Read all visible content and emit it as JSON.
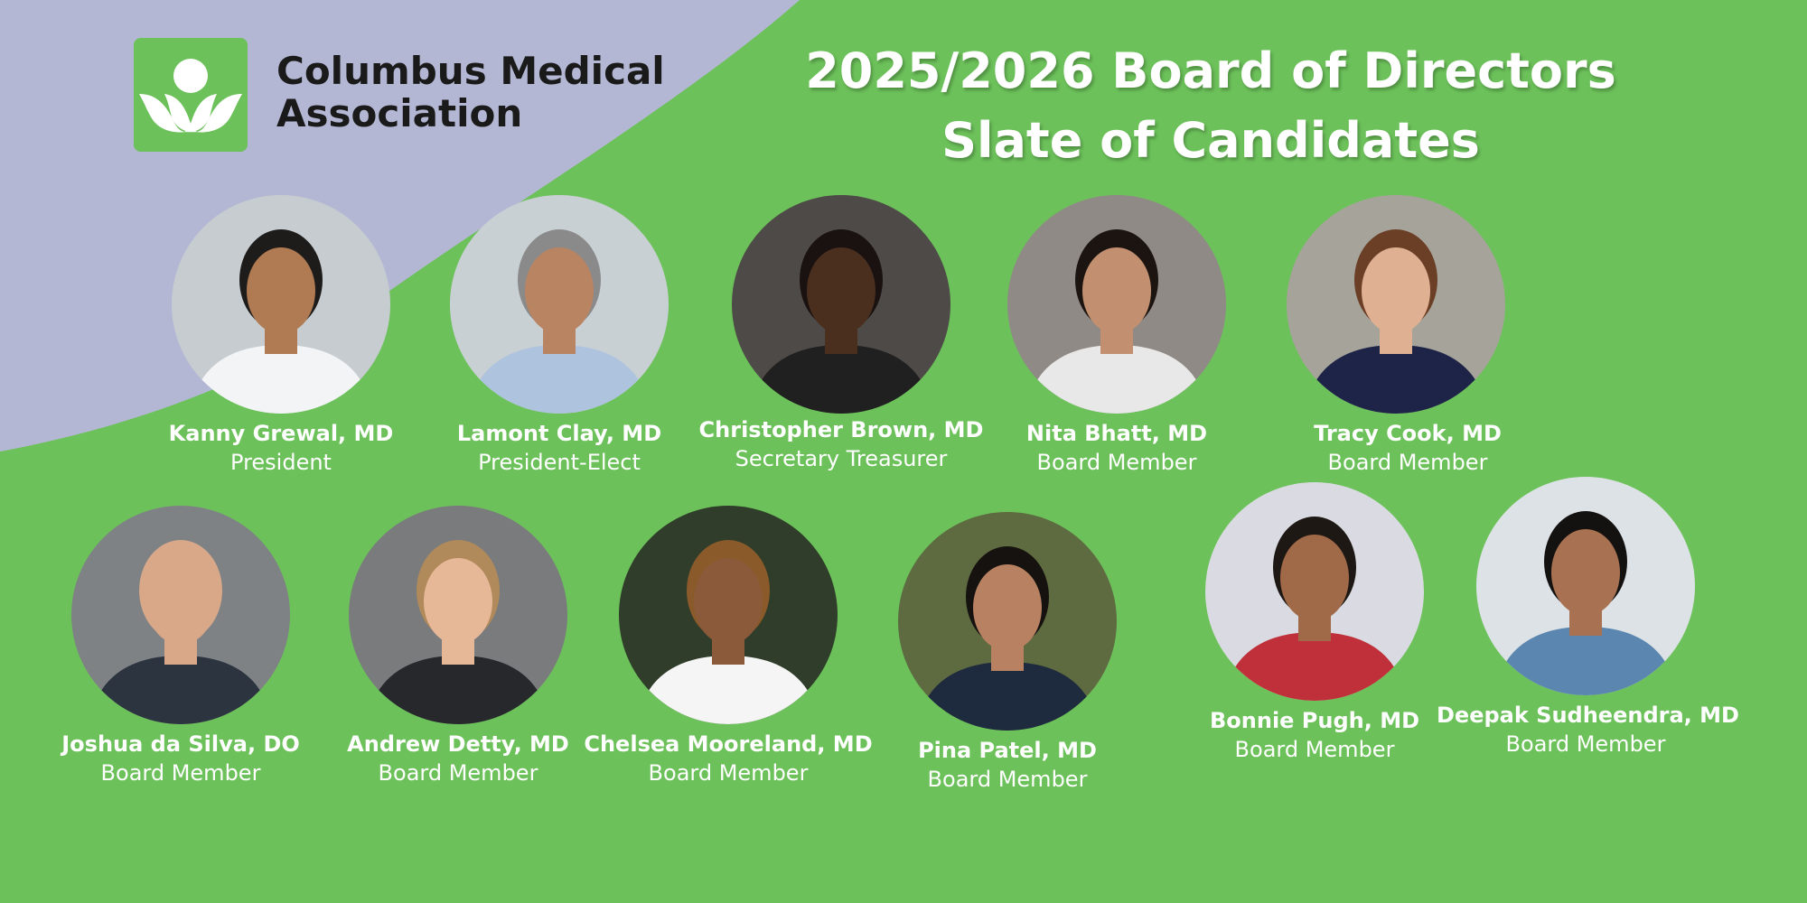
{
  "colors": {
    "background": "#6cc15a",
    "lavender": "#b4b7d4",
    "text_white": "#ffffff",
    "text_dark": "#1a1a1a"
  },
  "header": {
    "org_name": "Columbus Medical Association",
    "title_line1": "2025/2026 Board of Directors",
    "title_line2": "Slate of Candidates"
  },
  "candidates": [
    {
      "name": "Kanny Grewal, MD",
      "role": "President",
      "bg": "#c6ccd0",
      "skin": "#b07a52",
      "hair": "#1e1c1a",
      "outfit": "#f2f4f6"
    },
    {
      "name": "Lamont Clay, MD",
      "role": "President-Elect",
      "bg": "#c9d0d4",
      "skin": "#b98462",
      "hair": "#8a8a8a",
      "outfit": "#aec3dd"
    },
    {
      "name": "Christopher Brown, MD",
      "role": "Secretary Treasurer",
      "bg": "#4e4a47",
      "skin": "#4a2e1e",
      "hair": "#1a1210",
      "outfit": "#202020"
    },
    {
      "name": "Nita Bhatt, MD",
      "role": "Board Member",
      "bg": "#8f8a86",
      "skin": "#c29070",
      "hair": "#1c1410",
      "outfit": "#e8e8e8"
    },
    {
      "name": "Tracy Cook, MD",
      "role": "Board Member",
      "bg": "#a6a39a",
      "skin": "#e0b092",
      "hair": "#6b3e26",
      "outfit": "#1e2448"
    },
    {
      "name": "Joshua da Silva, DO",
      "role": "Board Member",
      "bg": "#7f8285",
      "skin": "#d8a888",
      "hair": "#d8a888",
      "outfit": "#2c3440"
    },
    {
      "name": "Andrew Detty, MD",
      "role": "Board Member",
      "bg": "#7a7b7d",
      "skin": "#e6b898",
      "hair": "#b08a5a",
      "outfit": "#26282c"
    },
    {
      "name": "Chelsea Mooreland, MD",
      "role": "Board Member",
      "bg": "#2f3d2a",
      "skin": "#8a5a3a",
      "hair": "#8a5a2a",
      "outfit": "#f5f5f5"
    },
    {
      "name": "Pina Patel, MD",
      "role": "Board Member",
      "bg": "#5e6a40",
      "skin": "#b88262",
      "hair": "#16120f",
      "outfit": "#1e2a3e"
    },
    {
      "name": "Bonnie Pugh, MD",
      "role": "Board Member",
      "bg": "#dadbe2",
      "skin": "#a06a48",
      "hair": "#1e1814",
      "outfit": "#c0303a"
    },
    {
      "name": "Deepak Sudheendra, MD",
      "role": "Board Member",
      "bg": "#dde2e6",
      "skin": "#a87252",
      "hair": "#141210",
      "outfit": "#5a86b0"
    }
  ]
}
